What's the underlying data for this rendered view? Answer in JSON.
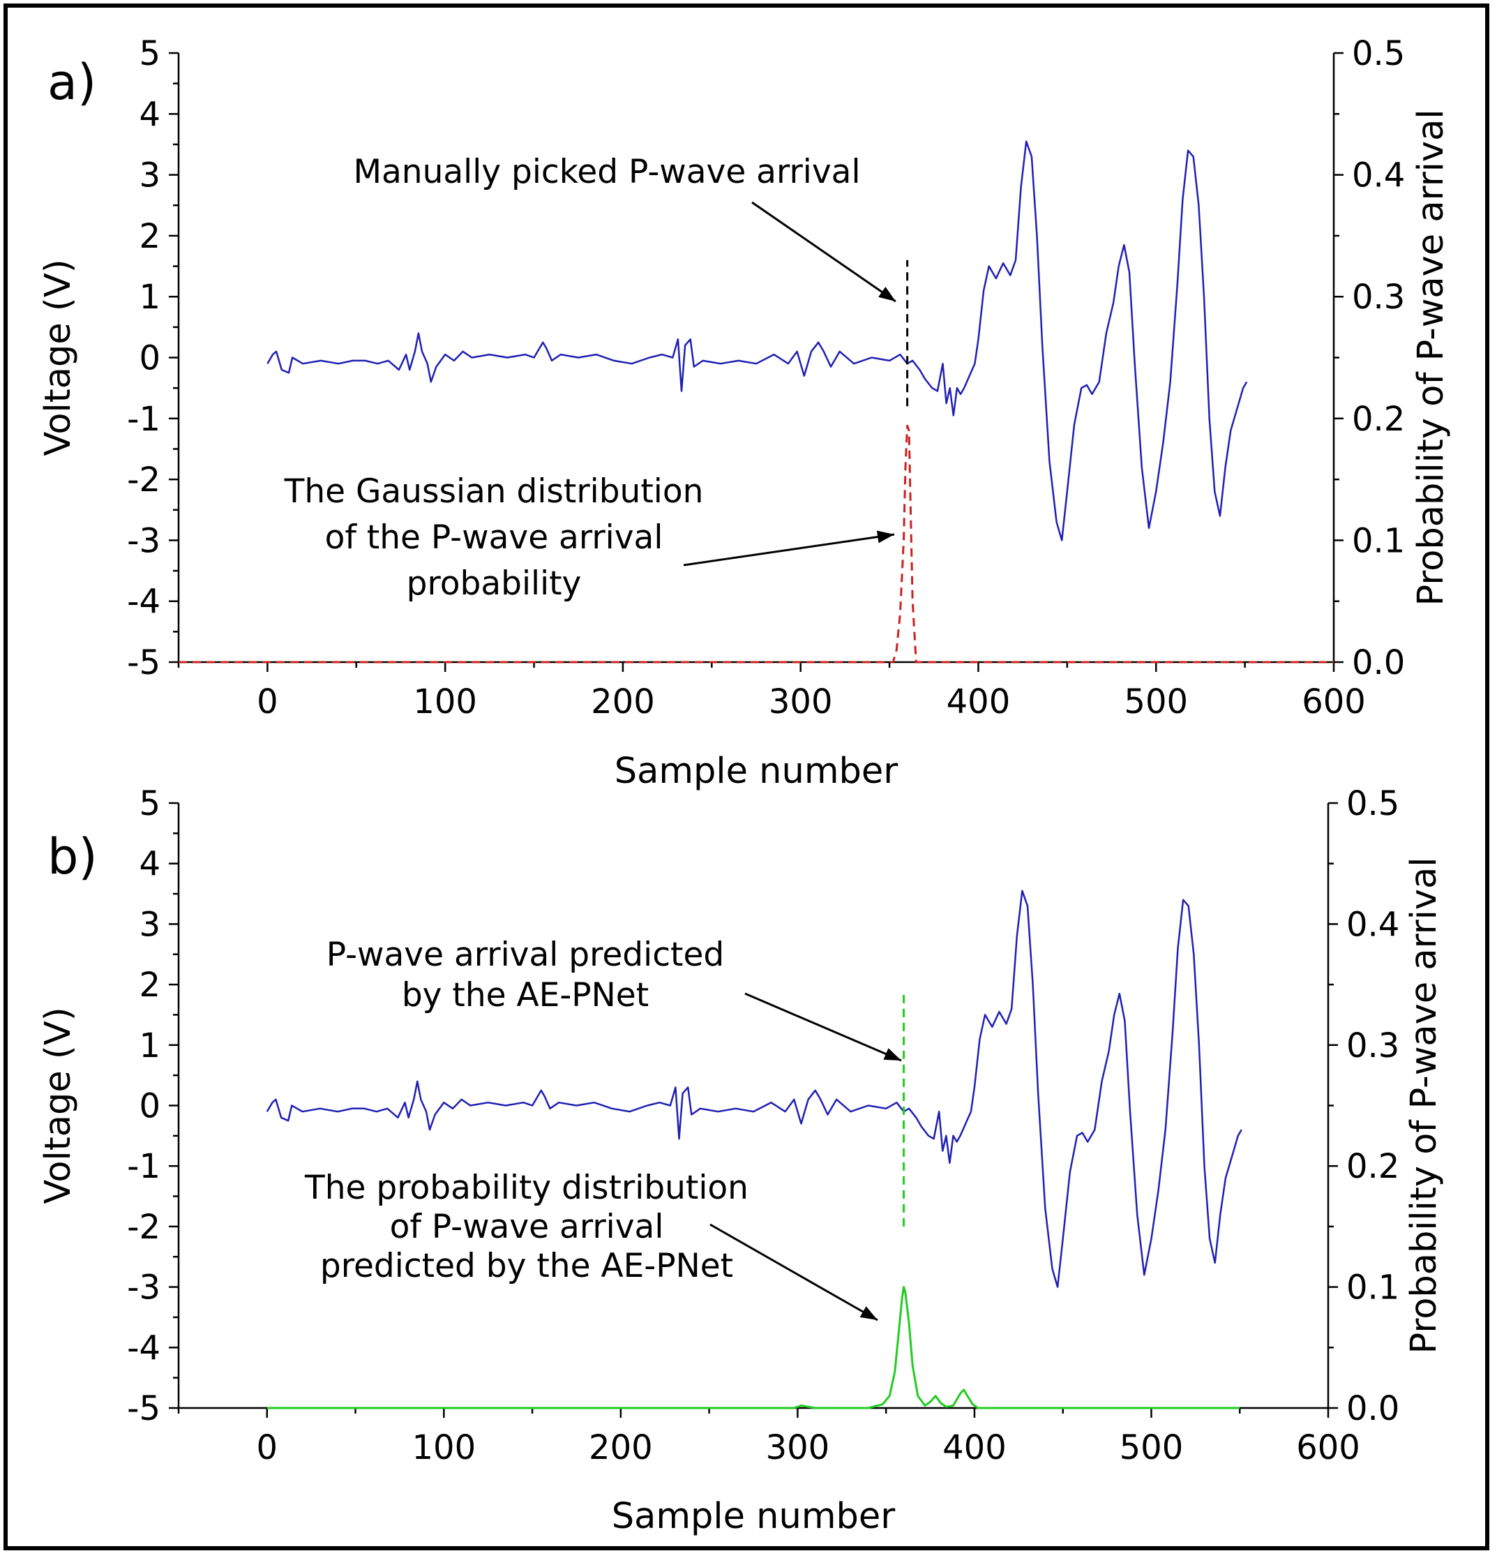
{
  "chart_data": [
    {
      "type": "line",
      "panel_label": "a)",
      "xlabel": "Sample number",
      "ylabel": "Voltage (V)",
      "y2label": "Probability of P-wave arrival",
      "xlim": [
        -50,
        600
      ],
      "ylim": [
        -5,
        5
      ],
      "y2lim": [
        0.0,
        0.5
      ],
      "xticks": [
        "0",
        "100",
        "200",
        "300",
        "400",
        "500",
        "600"
      ],
      "yticks": [
        "5",
        "4",
        "3",
        "2",
        "1",
        "0",
        "-1",
        "-2",
        "-3",
        "-4",
        "-5"
      ],
      "y2ticks": [
        "0.5",
        "0.4",
        "0.3",
        "0.2",
        "0.1",
        "0.0"
      ],
      "grid": false,
      "colors": {
        "waveform": "#1f1fb4",
        "probability": "#cc2020",
        "pick": "#000000"
      },
      "series": [
        {
          "axis": "left",
          "style": "solid",
          "x": [
            0,
            3,
            5,
            8,
            12,
            14,
            20,
            30,
            40,
            48,
            55,
            62,
            68,
            74,
            78,
            80,
            83,
            85,
            87,
            90,
            92,
            95,
            100,
            105,
            110,
            115,
            125,
            135,
            145,
            150,
            155,
            157,
            160,
            165,
            175,
            185,
            195,
            205,
            215,
            222,
            228,
            231,
            233,
            235,
            238,
            240,
            245,
            255,
            265,
            275,
            285,
            293,
            298,
            302,
            306,
            310,
            313,
            317,
            322,
            330,
            340,
            350,
            356,
            360,
            363,
            367,
            370,
            374,
            377,
            380,
            382,
            384,
            386,
            388,
            390,
            392,
            395,
            398,
            400,
            403,
            406,
            410,
            414,
            418,
            421,
            424,
            427,
            430,
            433,
            436,
            440,
            444,
            447,
            450,
            454,
            458,
            461,
            464,
            468,
            472,
            476,
            479,
            482,
            485,
            488,
            492,
            496,
            500,
            504,
            508,
            512,
            515,
            518,
            521,
            524,
            527,
            530,
            533,
            536,
            539,
            542,
            546,
            549,
            551
          ],
          "y": [
            -0.1,
            0.05,
            0.1,
            -0.2,
            -0.25,
            0.0,
            -0.1,
            -0.05,
            -0.1,
            -0.05,
            -0.05,
            -0.1,
            -0.05,
            -0.2,
            0.05,
            -0.2,
            0.1,
            0.4,
            0.1,
            -0.1,
            -0.4,
            -0.15,
            0.05,
            -0.05,
            0.1,
            0.0,
            0.05,
            0.0,
            0.05,
            0.0,
            0.25,
            0.15,
            -0.05,
            0.05,
            0.0,
            0.05,
            -0.05,
            -0.1,
            0.0,
            0.05,
            0.0,
            0.3,
            -0.55,
            0.2,
            0.3,
            -0.15,
            -0.05,
            -0.1,
            -0.05,
            -0.1,
            0.05,
            -0.1,
            0.1,
            -0.3,
            0.1,
            0.25,
            0.1,
            -0.15,
            0.1,
            -0.1,
            0.0,
            -0.05,
            0.05,
            -0.1,
            -0.05,
            -0.2,
            -0.35,
            -0.5,
            -0.55,
            -0.1,
            -0.75,
            -0.5,
            -0.95,
            -0.5,
            -0.6,
            -0.5,
            -0.3,
            -0.1,
            0.3,
            1.1,
            1.5,
            1.3,
            1.55,
            1.35,
            1.6,
            2.8,
            3.55,
            3.3,
            2.0,
            0.2,
            -1.7,
            -2.7,
            -3.0,
            -2.2,
            -1.1,
            -0.5,
            -0.45,
            -0.6,
            -0.4,
            0.4,
            0.9,
            1.5,
            1.85,
            1.4,
            -0.1,
            -1.8,
            -2.8,
            -2.2,
            -1.4,
            -0.4,
            1.2,
            2.6,
            3.4,
            3.3,
            2.5,
            1.0,
            -1.0,
            -2.2,
            -2.6,
            -1.8,
            -1.2,
            -0.8,
            -0.5,
            -0.4
          ]
        },
        {
          "axis": "right",
          "style": "dashed",
          "x": [
            -50,
            352,
            354,
            356,
            358,
            359,
            360,
            361,
            362,
            363,
            365,
            600
          ],
          "y": [
            0.0,
            0.0,
            0.01,
            0.04,
            0.1,
            0.16,
            0.194,
            0.19,
            0.12,
            0.05,
            0.0,
            0.0
          ]
        },
        {
          "axis": "left",
          "style": "dashed",
          "x": [
            360,
            360
          ],
          "y": [
            -0.8,
            1.6
          ]
        }
      ],
      "annotations": [
        {
          "lines": [
            "Manually picked P-wave arrival"
          ]
        },
        {
          "lines": [
            "The Gaussian distribution",
            "of the P-wave arrival",
            "probability"
          ]
        }
      ]
    },
    {
      "type": "line",
      "panel_label": "b)",
      "xlabel": "Sample number",
      "ylabel": "Voltage (V)",
      "y2label": "Probability of P-wave arrival",
      "xlim": [
        -50,
        600
      ],
      "ylim": [
        -5,
        5
      ],
      "y2lim": [
        0.0,
        0.5
      ],
      "xticks": [
        "0",
        "100",
        "200",
        "300",
        "400",
        "500",
        "600"
      ],
      "yticks": [
        "5",
        "4",
        "3",
        "2",
        "1",
        "0",
        "-1",
        "-2",
        "-3",
        "-4",
        "-5"
      ],
      "y2ticks": [
        "0.5",
        "0.4",
        "0.3",
        "0.2",
        "0.1",
        "0.0"
      ],
      "grid": false,
      "colors": {
        "waveform": "#1f1fb4",
        "probability": "#22cc22",
        "pick": "#22cc22"
      },
      "series": [
        {
          "axis": "left",
          "style": "solid",
          "x": [
            0,
            3,
            5,
            8,
            12,
            14,
            20,
            30,
            40,
            48,
            55,
            62,
            68,
            74,
            78,
            80,
            83,
            85,
            87,
            90,
            92,
            95,
            100,
            105,
            110,
            115,
            125,
            135,
            145,
            150,
            155,
            157,
            160,
            165,
            175,
            185,
            195,
            205,
            215,
            222,
            228,
            231,
            233,
            235,
            238,
            240,
            245,
            255,
            265,
            275,
            285,
            293,
            298,
            302,
            306,
            310,
            313,
            317,
            322,
            330,
            340,
            350,
            356,
            360,
            363,
            367,
            370,
            374,
            377,
            380,
            382,
            384,
            386,
            388,
            390,
            392,
            395,
            398,
            400,
            403,
            406,
            410,
            414,
            418,
            421,
            424,
            427,
            430,
            433,
            436,
            440,
            444,
            447,
            450,
            454,
            458,
            461,
            464,
            468,
            472,
            476,
            479,
            482,
            485,
            488,
            492,
            496,
            500,
            504,
            508,
            512,
            515,
            518,
            521,
            524,
            527,
            530,
            533,
            536,
            539,
            542,
            546,
            549,
            551
          ],
          "y": [
            -0.1,
            0.05,
            0.1,
            -0.2,
            -0.25,
            0.0,
            -0.1,
            -0.05,
            -0.1,
            -0.05,
            -0.05,
            -0.1,
            -0.05,
            -0.2,
            0.05,
            -0.2,
            0.1,
            0.4,
            0.1,
            -0.1,
            -0.4,
            -0.15,
            0.05,
            -0.05,
            0.1,
            0.0,
            0.05,
            0.0,
            0.05,
            0.0,
            0.25,
            0.15,
            -0.05,
            0.05,
            0.0,
            0.05,
            -0.05,
            -0.1,
            0.0,
            0.05,
            0.0,
            0.3,
            -0.55,
            0.2,
            0.3,
            -0.15,
            -0.05,
            -0.1,
            -0.05,
            -0.1,
            0.05,
            -0.1,
            0.1,
            -0.3,
            0.1,
            0.25,
            0.1,
            -0.15,
            0.1,
            -0.1,
            0.0,
            -0.05,
            0.05,
            -0.1,
            -0.05,
            -0.2,
            -0.35,
            -0.5,
            -0.55,
            -0.1,
            -0.75,
            -0.5,
            -0.95,
            -0.5,
            -0.6,
            -0.5,
            -0.3,
            -0.1,
            0.3,
            1.1,
            1.5,
            1.3,
            1.55,
            1.35,
            1.6,
            2.8,
            3.55,
            3.3,
            2.0,
            0.2,
            -1.7,
            -2.7,
            -3.0,
            -2.2,
            -1.1,
            -0.5,
            -0.45,
            -0.6,
            -0.4,
            0.4,
            0.9,
            1.5,
            1.85,
            1.4,
            -0.1,
            -1.8,
            -2.8,
            -2.2,
            -1.4,
            -0.4,
            1.2,
            2.6,
            3.4,
            3.3,
            2.5,
            1.0,
            -1.0,
            -2.2,
            -2.6,
            -1.8,
            -1.2,
            -0.8,
            -0.5,
            -0.4
          ]
        },
        {
          "axis": "right",
          "style": "solid",
          "x": [
            0,
            298,
            302,
            306,
            310,
            340,
            348,
            352,
            355,
            357,
            359,
            360,
            361,
            363,
            365,
            368,
            372,
            375,
            378,
            381,
            384,
            388,
            392,
            394,
            396,
            399,
            402,
            420,
            550
          ],
          "y": [
            0.0,
            0.0,
            0.002,
            0.001,
            0.0,
            0.0,
            0.003,
            0.01,
            0.03,
            0.06,
            0.09,
            0.1,
            0.095,
            0.07,
            0.035,
            0.01,
            0.002,
            0.005,
            0.01,
            0.004,
            0.001,
            0.002,
            0.012,
            0.015,
            0.01,
            0.003,
            0.0,
            0.0,
            0.0
          ]
        },
        {
          "axis": "left",
          "style": "dashed",
          "x": [
            360,
            360
          ],
          "y": [
            -2.0,
            1.9
          ]
        }
      ],
      "annotations": [
        {
          "lines": [
            "P-wave arrival predicted",
            "by the AE-PNet"
          ]
        },
        {
          "lines": [
            "The probability distribution",
            "of P-wave arrival",
            "predicted by the AE-PNet"
          ]
        }
      ]
    }
  ]
}
